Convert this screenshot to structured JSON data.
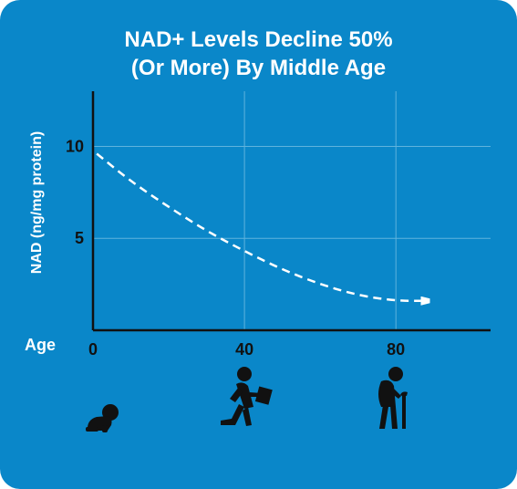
{
  "chart_data": {
    "type": "line",
    "title_lines": [
      "NAD+ Levels Decline 50%",
      "(Or More) By Middle Age"
    ],
    "xlabel": "Age",
    "ylabel": "NAD (ng/mg protein)",
    "xlim": [
      0,
      105
    ],
    "ylim": [
      0,
      13
    ],
    "xticks": [
      0,
      40,
      80
    ],
    "yticks": [
      5,
      10
    ],
    "grid": true,
    "line_style": "dashed",
    "line_color": "#ffffff",
    "ends_with_arrow": true,
    "series": [
      {
        "x": [
          1,
          10,
          20,
          30,
          40,
          50,
          60,
          70,
          80,
          88
        ],
        "y": [
          9.6,
          8.1,
          6.7,
          5.4,
          4.3,
          3.3,
          2.5,
          1.9,
          1.6,
          1.6
        ]
      }
    ]
  },
  "icons": [
    "baby-crawling-icon",
    "adult-walking-briefcase-icon",
    "elderly-cane-icon"
  ],
  "colors": {
    "background": "#0a87c9",
    "grid": "#5fb3dd",
    "foreground": "#ffffff",
    "axis": "#111111"
  }
}
